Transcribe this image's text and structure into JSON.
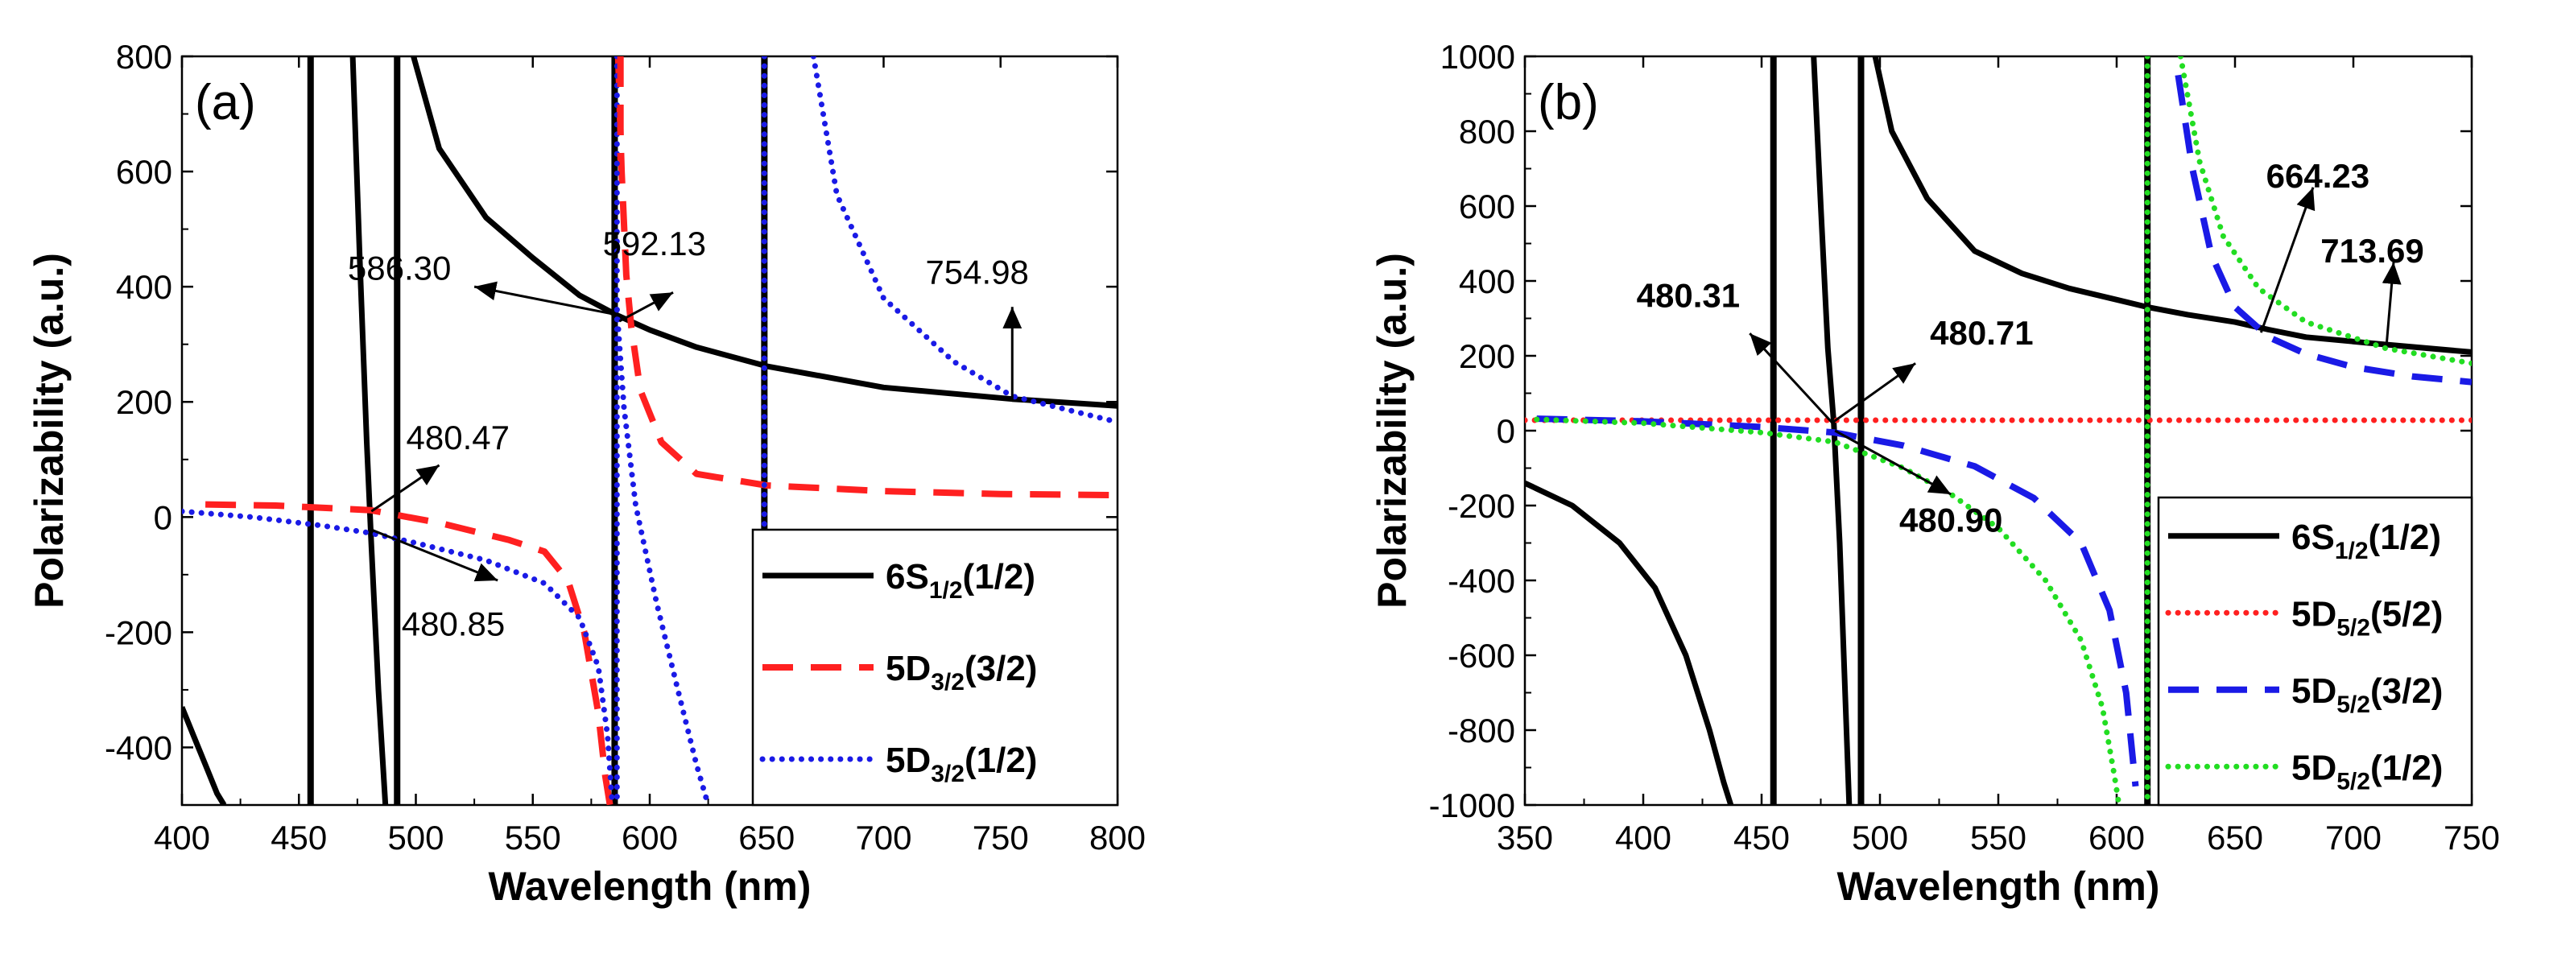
{
  "chart_data": [
    {
      "type": "line",
      "panel_label": "(a)",
      "xlabel": "Wavelength (nm)",
      "ylabel": "Polarizability (a.u.)",
      "xlim": [
        400,
        800
      ],
      "ylim": [
        -500,
        800
      ],
      "x_ticks": [
        400,
        450,
        500,
        550,
        600,
        650,
        700,
        750,
        800
      ],
      "y_ticks": [
        -400,
        -200,
        0,
        200,
        400,
        600,
        800
      ],
      "resonances": [
        455,
        492,
        585,
        649
      ],
      "legend_position": "lower-right",
      "series": [
        {
          "name": "6S1/2(1/2)",
          "label_main": "6S",
          "label_sub": "1/2",
          "label_tail": "(1/2)",
          "color": "#000000",
          "style": "solid",
          "segments": [
            {
              "x": [
                400,
                405,
                410,
                415,
                418
              ],
              "y": [
                -330,
                -380,
                -430,
                -480,
                -500
              ]
            },
            {
              "x": [
                473,
                476,
                479,
                481,
                484,
                487
              ],
              "y": [
                800,
                450,
                130,
                -50,
                -300,
                -500
              ]
            },
            {
              "x": [
                499,
                510,
                530,
                550,
                570,
                586.3,
                600,
                620,
                650,
                700,
                754.98,
                800
              ],
              "y": [
                800,
                640,
                520,
                450,
                385,
                350,
                325,
                295,
                262,
                225,
                205,
                193
              ]
            }
          ]
        },
        {
          "name": "5D3/2(3/2)",
          "label_main": "5D",
          "label_sub": "3/2",
          "label_tail": "(3/2)",
          "color": "#ff2020",
          "style": "dashed",
          "segments": [
            {
              "x": [
                410,
                440,
                480.47,
                510,
                540,
                555,
                565,
                572,
                578,
                581,
                583
              ],
              "y": [
                22,
                20,
                12,
                -10,
                -40,
                -60,
                -110,
                -200,
                -340,
                -450,
                -500
              ]
            },
            {
              "x": [
                586.5,
                588,
                590,
                592.13,
                596,
                605,
                620,
                650,
                700,
                750,
                800
              ],
              "y": [
                800,
                600,
                420,
                330,
                220,
                130,
                75,
                55,
                45,
                40,
                38
              ]
            }
          ]
        },
        {
          "name": "5D3/2(1/2)",
          "label_main": "5D",
          "label_sub": "3/2",
          "label_tail": "(1/2)",
          "color": "#1a1ae6",
          "style": "dotted",
          "segments": [
            {
              "x": [
                400,
                430,
                460,
                480.85,
                500,
                530,
                555,
                570,
                578,
                582,
                584
              ],
              "y": [
                10,
                0,
                -15,
                -28,
                -45,
                -75,
                -115,
                -175,
                -260,
                -380,
                -500
              ]
            },
            {
              "x": [
                586,
                589,
                594,
                603,
                612,
                620,
                625
              ],
              "y": [
                360,
                190,
                20,
                -150,
                -300,
                -430,
                -500
              ]
            },
            {
              "x": [
                670,
                680,
                700,
                730,
                754.98,
                780,
                800
              ],
              "y": [
                800,
                560,
                380,
                270,
                210,
                185,
                165
              ]
            }
          ]
        }
      ],
      "annotations": [
        {
          "text": "586.30",
          "bold": false,
          "pt": [
            585,
            352
          ],
          "tip": [
            525,
            400
          ],
          "lab": [
            493,
            412
          ]
        },
        {
          "text": "592.13",
          "bold": false,
          "pt": [
            587,
            340
          ],
          "tip": [
            610,
            390
          ],
          "lab": [
            602,
            455
          ]
        },
        {
          "text": "754.98",
          "bold": false,
          "pt": [
            755,
            205
          ],
          "tip": [
            755,
            365
          ],
          "lab": [
            740,
            405
          ]
        },
        {
          "text": "480.47",
          "bold": false,
          "pt": [
            481,
            10
          ],
          "tip": [
            510,
            90
          ],
          "lab": [
            518,
            118
          ]
        },
        {
          "text": "480.85",
          "bold": false,
          "pt": [
            481,
            -22
          ],
          "tip": [
            535,
            -110
          ],
          "lab": [
            516,
            -206
          ]
        }
      ]
    },
    {
      "type": "line",
      "panel_label": "(b)",
      "xlabel": "Wavelength (nm)",
      "ylabel": "Polarizability (a.u.)",
      "xlim": [
        350,
        750
      ],
      "ylim": [
        -1000,
        1000
      ],
      "x_ticks": [
        350,
        400,
        450,
        500,
        550,
        600,
        650,
        700,
        750
      ],
      "y_ticks": [
        -1000,
        -800,
        -600,
        -400,
        -200,
        0,
        200,
        400,
        600,
        800,
        1000
      ],
      "resonances": [
        455,
        492,
        613
      ],
      "legend_position": "lower-right",
      "series": [
        {
          "name": "6S1/2(1/2)",
          "label_main": "6S",
          "label_sub": "1/2",
          "label_tail": "(1/2)",
          "color": "#000000",
          "style": "solid",
          "segments": [
            {
              "x": [
                350,
                370,
                390,
                405,
                418,
                428,
                434,
                437
              ],
              "y": [
                -140,
                -200,
                -300,
                -420,
                -600,
                -800,
                -940,
                -1000
              ]
            },
            {
              "x": [
                472,
                475,
                478,
                480.5,
                483,
                485,
                487
              ],
              "y": [
                1000,
                600,
                220,
                20,
                -300,
                -650,
                -1000
              ]
            },
            {
              "x": [
                498,
                505,
                520,
                540,
                560,
                580,
                600,
                613,
                630,
                650,
                664.23,
                680,
                713.69,
                750
              ],
              "y": [
                1000,
                800,
                620,
                480,
                420,
                380,
                350,
                330,
                310,
                290,
                270,
                250,
                230,
                210
              ]
            }
          ]
        },
        {
          "name": "5D5/2(5/2)",
          "label_main": "5D",
          "label_sub": "5/2",
          "label_tail": "(5/2)",
          "color": "#ff2020",
          "style": "dotted",
          "segments": [
            {
              "x": [
                350,
                450,
                550,
                612
              ],
              "y": [
                28,
                28,
                28,
                28
              ]
            },
            {
              "x": [
                614,
                680,
                750
              ],
              "y": [
                28,
                28,
                28
              ]
            }
          ]
        },
        {
          "name": "5D5/2(3/2)",
          "label_main": "5D",
          "label_sub": "5/2",
          "label_tail": "(3/2)",
          "color": "#1a1ae6",
          "style": "dashed",
          "segments": [
            {
              "x": [
                355,
                400,
                450,
                480.71,
                510,
                540,
                565,
                585,
                597,
                604,
                608
              ],
              "y": [
                32,
                25,
                10,
                -5,
                -40,
                -95,
                -180,
                -300,
                -480,
                -700,
                -950
              ]
            },
            {
              "x": [
                626,
                632,
                640,
                650,
                664.23,
                680,
                700,
                725,
                750
              ],
              "y": [
                950,
                700,
                470,
                330,
                250,
                205,
                170,
                145,
                130
              ]
            }
          ]
        },
        {
          "name": "5D5/2(1/2)",
          "label_main": "5D",
          "label_sub": "5/2",
          "label_tail": "(1/2)",
          "color": "#22dd22",
          "style": "dotted",
          "segments": [
            {
              "x": [
                355,
                400,
                450,
                480.9,
                510,
                530,
                550,
                570,
                585,
                594,
                599,
                601
              ],
              "y": [
                30,
                20,
                -5,
                -30,
                -100,
                -170,
                -260,
                -400,
                -560,
                -740,
                -920,
                -1000
              ]
            },
            {
              "x": [
                627,
                635,
                645,
                660,
                680,
                713.69,
                750
              ],
              "y": [
                1000,
                720,
                520,
                380,
                290,
                220,
                180
              ]
            }
          ]
        }
      ],
      "annotations": [
        {
          "text": "480.31",
          "bold": true,
          "pt": [
            480,
            20
          ],
          "tip": [
            445,
            260
          ],
          "lab": [
            419,
            330
          ]
        },
        {
          "text": "480.71",
          "bold": true,
          "pt": [
            480,
            22
          ],
          "tip": [
            515,
            180
          ],
          "lab": [
            543,
            230
          ]
        },
        {
          "text": "480.90",
          "bold": true,
          "pt": [
            481,
            0
          ],
          "tip": [
            530,
            -170
          ],
          "lab": [
            530,
            -270
          ]
        },
        {
          "text": "664.23",
          "bold": true,
          "pt": [
            661,
            262
          ],
          "tip": [
            683,
            650
          ],
          "lab": [
            685,
            650
          ]
        },
        {
          "text": "713.69",
          "bold": true,
          "pt": [
            714,
            228
          ],
          "tip": [
            717,
            450
          ],
          "lab": [
            708,
            450
          ]
        }
      ]
    }
  ]
}
